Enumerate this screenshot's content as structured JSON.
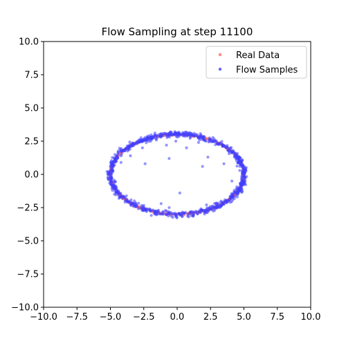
{
  "chart_data": {
    "type": "scatter",
    "title": "Flow Sampling at step 11100",
    "xlim": [
      -10,
      10
    ],
    "ylim": [
      -10,
      10
    ],
    "xticks": [
      "−10.0",
      "−7.5",
      "−5.0",
      "−2.5",
      "0.0",
      "2.5",
      "5.0",
      "7.5",
      "10.0"
    ],
    "yticks": [
      "−10.0",
      "−7.5",
      "−5.0",
      "−2.5",
      "0.0",
      "2.5",
      "5.0",
      "7.5",
      "10.0"
    ],
    "grid": false,
    "legend_position": "top-right",
    "series": [
      {
        "name": "Real Data",
        "color": "#ff6b5f",
        "description_shape": "ellipse",
        "center": [
          0,
          0
        ],
        "radii": [
          5,
          3
        ],
        "n_points": 500
      },
      {
        "name": "Flow Samples",
        "color": "#3f3fff",
        "description_shape": "ellipse",
        "center": [
          0,
          0
        ],
        "radii": [
          5,
          3
        ],
        "n_points": 900,
        "outliers": [
          [
            -0.1,
            2.5
          ],
          [
            -0.8,
            2.2
          ],
          [
            0.7,
            2.0
          ],
          [
            1.6,
            2.4
          ],
          [
            2.3,
            1.3
          ],
          [
            1.9,
            0.6
          ],
          [
            0.2,
            -1.4
          ],
          [
            -1.2,
            -2.2
          ],
          [
            -0.6,
            -2.5
          ],
          [
            2.2,
            -2.3
          ],
          [
            -2.4,
            0.8
          ],
          [
            -3.5,
            1.4
          ],
          [
            -4.2,
            0.9
          ],
          [
            -4.5,
            -1.3
          ],
          [
            -3.2,
            -2.0
          ],
          [
            3.5,
            0.8
          ],
          [
            3.9,
            1.7
          ],
          [
            4.1,
            -0.5
          ],
          [
            -1.4,
            -2.7
          ],
          [
            -0.6,
            1.2
          ],
          [
            1.0,
            2.8
          ],
          [
            -2.6,
            2.0
          ],
          [
            2.8,
            -2.2
          ],
          [
            4.5,
            -1.7
          ],
          [
            -4.7,
            -0.6
          ]
        ]
      }
    ]
  }
}
